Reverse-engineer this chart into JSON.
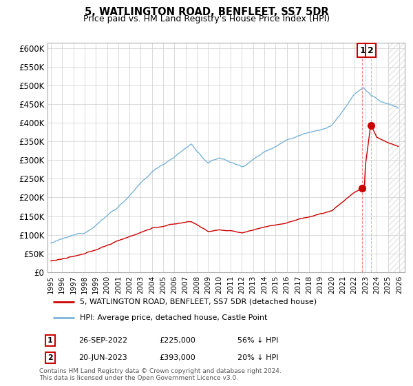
{
  "title": "5, WATLINGTON ROAD, BENFLEET, SS7 5DR",
  "subtitle": "Price paid vs. HM Land Registry's House Price Index (HPI)",
  "ylabel_ticks": [
    "£0",
    "£50K",
    "£100K",
    "£150K",
    "£200K",
    "£250K",
    "£300K",
    "£350K",
    "£400K",
    "£450K",
    "£500K",
    "£550K",
    "£600K"
  ],
  "ytick_values": [
    0,
    50000,
    100000,
    150000,
    200000,
    250000,
    300000,
    350000,
    400000,
    450000,
    500000,
    550000,
    600000
  ],
  "xlim_start": 1994.7,
  "xlim_end": 2026.5,
  "ylim": [
    0,
    615000
  ],
  "hpi_color": "#7ab4d8",
  "price_color": "#cc0000",
  "point1_x": 2022.73,
  "point1_y": 225000,
  "point2_x": 2023.47,
  "point2_y": 393000,
  "point1_label": "1",
  "point2_label": "2",
  "legend_line1": "5, WATLINGTON ROAD, BENFLEET, SS7 5DR (detached house)",
  "legend_line2": "HPI: Average price, detached house, Castle Point",
  "table_row1_num": "1",
  "table_row1_date": "26-SEP-2022",
  "table_row1_price": "£225,000",
  "table_row1_hpi": "56% ↓ HPI",
  "table_row2_num": "2",
  "table_row2_date": "20-JUN-2023",
  "table_row2_price": "£393,000",
  "table_row2_hpi": "20% ↓ HPI",
  "footer": "Contains HM Land Registry data © Crown copyright and database right 2024.\nThis data is licensed under the Open Government Licence v3.0.",
  "background_color": "#ffffff",
  "grid_color": "#cccccc",
  "hatch_start": 2025.0,
  "hatch_color": "#dddddd"
}
